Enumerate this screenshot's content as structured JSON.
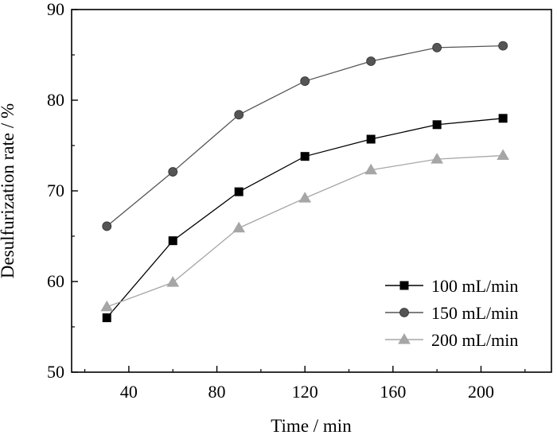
{
  "chart_data": {
    "type": "line",
    "xlabel": "Time / min",
    "ylabel": "Desulfurization rate / %",
    "xlim": [
      14,
      232
    ],
    "ylim": [
      50,
      90
    ],
    "xticks": [
      40,
      80,
      120,
      160,
      200
    ],
    "yticks": [
      50,
      60,
      70,
      80,
      90
    ],
    "x_minor_ticks": [
      20,
      60,
      100,
      140,
      180,
      220
    ],
    "grid": false,
    "legend_position": "lower-right",
    "x": [
      30,
      60,
      90,
      120,
      150,
      180,
      210
    ],
    "series": [
      {
        "name": "100 mL/min",
        "marker": "square",
        "color": "#000000",
        "values": [
          56.0,
          64.5,
          69.9,
          73.8,
          75.7,
          77.3,
          78.0
        ]
      },
      {
        "name": "150 mL/min",
        "marker": "circle",
        "color": "#555555",
        "values": [
          66.1,
          72.1,
          78.4,
          82.1,
          84.3,
          85.8,
          86.0
        ]
      },
      {
        "name": "200 mL/min",
        "marker": "triangle",
        "color": "#a6a6a6",
        "values": [
          57.2,
          59.9,
          65.9,
          69.2,
          72.3,
          73.5,
          73.9
        ]
      }
    ]
  }
}
